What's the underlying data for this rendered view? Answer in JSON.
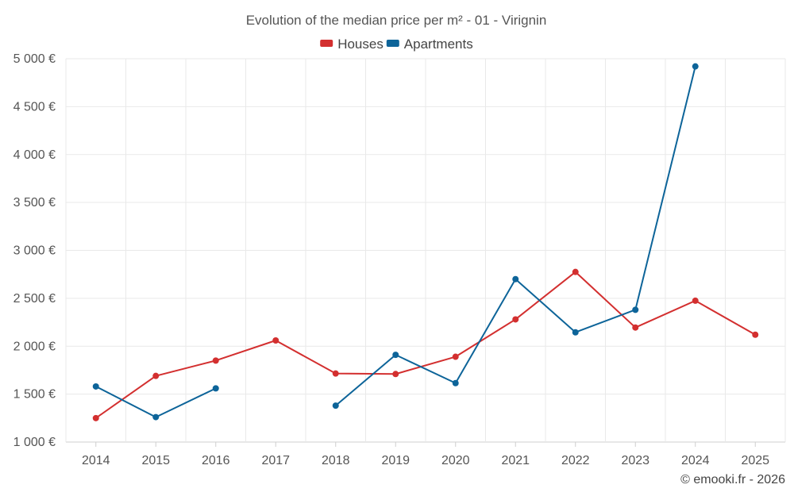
{
  "chart_data": {
    "type": "line",
    "title": "Evolution of the median price per m² - 01 - Virignin",
    "categories": [
      "2014",
      "2015",
      "2016",
      "2017",
      "2018",
      "2019",
      "2020",
      "2021",
      "2022",
      "2023",
      "2024",
      "2025"
    ],
    "series": [
      {
        "name": "Houses",
        "color": "#d32f2f",
        "values": [
          1250,
          1690,
          1850,
          2060,
          1715,
          1710,
          1890,
          2280,
          2775,
          2195,
          2475,
          2120
        ]
      },
      {
        "name": "Apartments",
        "color": "#0d6499",
        "values": [
          1580,
          1260,
          1560,
          null,
          1380,
          1910,
          1615,
          2700,
          2145,
          2380,
          4920,
          null
        ]
      }
    ],
    "ylim": [
      1000,
      5000
    ],
    "yticks": [
      1000,
      1500,
      2000,
      2500,
      3000,
      3500,
      4000,
      4500,
      5000
    ],
    "ytick_labels": [
      "1 000 €",
      "1 500 €",
      "2 000 €",
      "2 500 €",
      "3 000 €",
      "3 500 €",
      "4 000 €",
      "4 500 €",
      "5 000 €"
    ],
    "xlabel": "",
    "ylabel": "",
    "legend_position": "top-center",
    "grid": true
  },
  "credit": "© emooki.fr - 2026"
}
